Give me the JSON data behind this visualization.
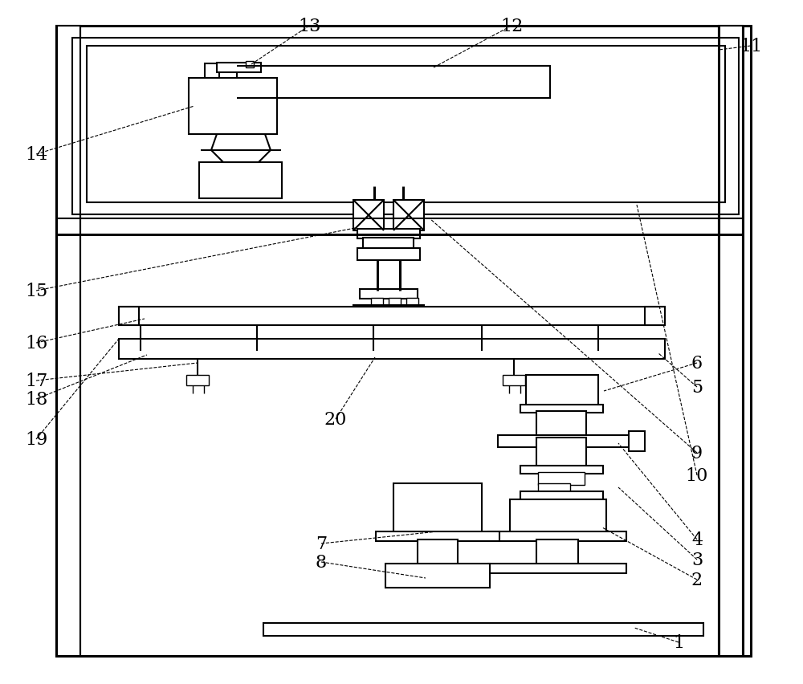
{
  "background_color": "#ffffff",
  "line_color": "#000000",
  "lw_heavy": 2.2,
  "lw_med": 1.5,
  "lw_light": 1.0,
  "fig_width": 10.0,
  "fig_height": 8.53
}
